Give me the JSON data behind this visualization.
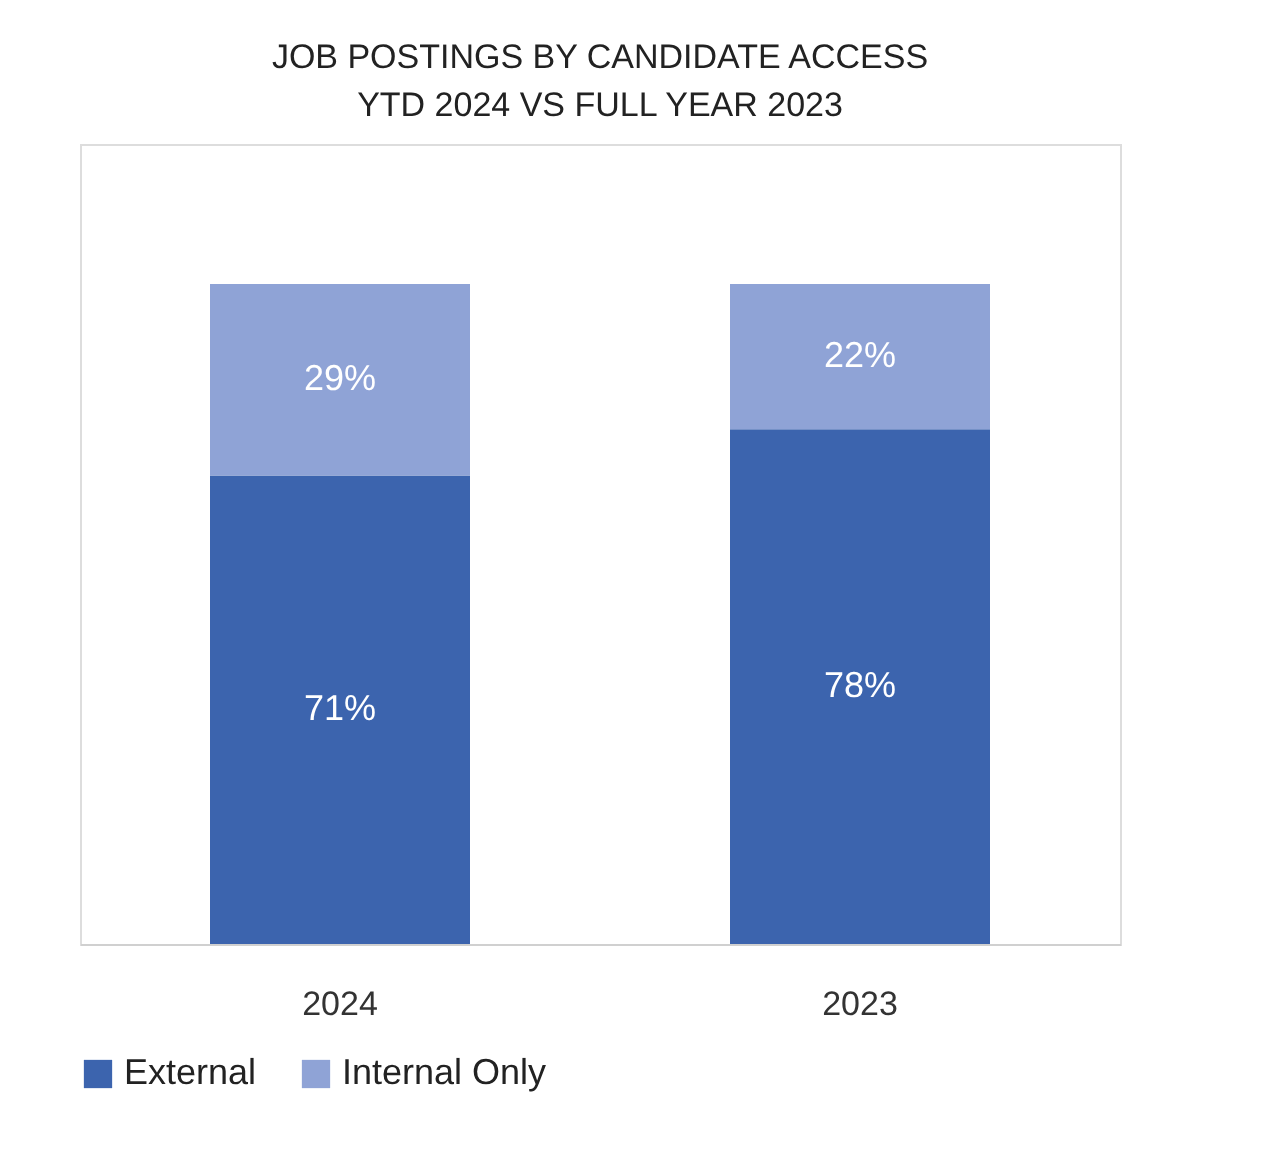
{
  "chart_data": {
    "type": "bar",
    "title": [
      "JOB POSTINGS BY CANDIDATE ACCESS",
      "YTD 2024 VS FULL YEAR 2023"
    ],
    "categories": [
      "2024",
      "2023"
    ],
    "stacked": true,
    "legend": "bottom",
    "tick_labels": "x",
    "series": [
      {
        "name": "External",
        "color": "#3c64ae",
        "values": [
          71,
          78
        ],
        "value_labels": [
          "71%",
          "78%"
        ]
      },
      {
        "name": "Internal Only",
        "color": "#8fa3d6",
        "values": [
          29,
          22
        ],
        "value_labels": [
          "29%",
          "22%"
        ]
      }
    ]
  }
}
